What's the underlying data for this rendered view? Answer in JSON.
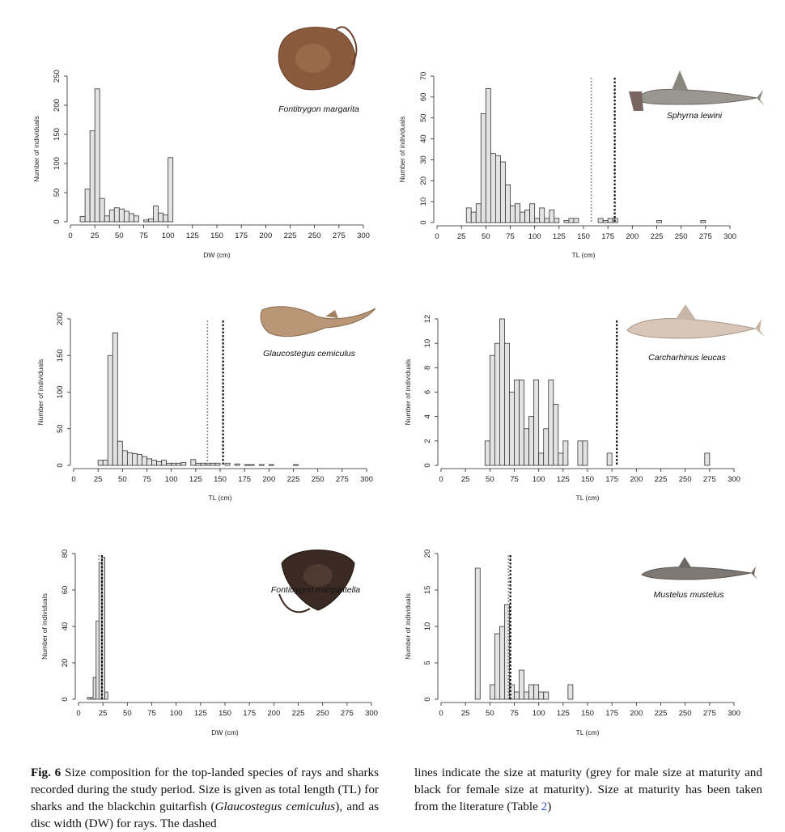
{
  "chart_data": [
    {
      "type": "bar",
      "species": "Fontitrygon margarita",
      "xlabel": "DW (cm)",
      "ylabel": "Number of individuals",
      "xlim": [
        0,
        300
      ],
      "ylim": [
        0,
        250
      ],
      "xticks": [
        0,
        25,
        50,
        75,
        100,
        125,
        150,
        175,
        200,
        225,
        250,
        275,
        300
      ],
      "yticks": [
        0,
        50,
        100,
        150,
        200,
        250
      ],
      "bin_width": 5,
      "bins": [
        [
          10,
          9
        ],
        [
          15,
          56
        ],
        [
          20,
          156
        ],
        [
          25,
          228
        ],
        [
          30,
          40
        ],
        [
          35,
          10
        ],
        [
          40,
          20
        ],
        [
          45,
          24
        ],
        [
          50,
          22
        ],
        [
          55,
          18
        ],
        [
          60,
          14
        ],
        [
          65,
          10
        ],
        [
          75,
          3
        ],
        [
          80,
          5
        ],
        [
          85,
          27
        ],
        [
          90,
          15
        ],
        [
          95,
          12
        ],
        [
          100,
          110
        ]
      ],
      "maturity_male": null,
      "maturity_female": null,
      "silhouette": "stingray-brown"
    },
    {
      "type": "bar",
      "species": "Sphyrna lewini",
      "xlabel": "TL (cm)",
      "ylabel": "Number of individuals",
      "xlim": [
        0,
        300
      ],
      "ylim": [
        0,
        70
      ],
      "xticks": [
        0,
        25,
        50,
        75,
        100,
        125,
        150,
        175,
        200,
        225,
        250,
        275,
        300
      ],
      "yticks": [
        0,
        10,
        20,
        30,
        40,
        50,
        60,
        70
      ],
      "bin_width": 5,
      "bins": [
        [
          30,
          7
        ],
        [
          35,
          5
        ],
        [
          40,
          9
        ],
        [
          45,
          52
        ],
        [
          50,
          64
        ],
        [
          55,
          33
        ],
        [
          60,
          32
        ],
        [
          65,
          29
        ],
        [
          70,
          18
        ],
        [
          75,
          8
        ],
        [
          80,
          9
        ],
        [
          85,
          5
        ],
        [
          90,
          6
        ],
        [
          95,
          9
        ],
        [
          100,
          2
        ],
        [
          105,
          7
        ],
        [
          110,
          2
        ],
        [
          115,
          6
        ],
        [
          120,
          2
        ],
        [
          130,
          1
        ],
        [
          135,
          2
        ],
        [
          140,
          2
        ],
        [
          145,
          0
        ],
        [
          165,
          2
        ],
        [
          170,
          1
        ],
        [
          175,
          2
        ],
        [
          180,
          2
        ],
        [
          225,
          1
        ],
        [
          270,
          1
        ]
      ],
      "maturity_male": 158,
      "maturity_female": 182,
      "silhouette": "hammerhead"
    },
    {
      "type": "bar",
      "species": "Glaucostegus cemiculus",
      "xlabel": "TL (cm)",
      "ylabel": "Number of individuals",
      "xlim": [
        0,
        300
      ],
      "ylim": [
        0,
        200
      ],
      "xticks": [
        0,
        25,
        50,
        75,
        100,
        125,
        150,
        175,
        200,
        225,
        250,
        275,
        300
      ],
      "yticks": [
        0,
        50,
        100,
        150,
        200
      ],
      "bin_width": 5,
      "bins": [
        [
          25,
          7
        ],
        [
          30,
          7
        ],
        [
          35,
          150
        ],
        [
          40,
          181
        ],
        [
          45,
          33
        ],
        [
          50,
          20
        ],
        [
          55,
          17
        ],
        [
          60,
          16
        ],
        [
          65,
          15
        ],
        [
          70,
          12
        ],
        [
          75,
          9
        ],
        [
          80,
          7
        ],
        [
          85,
          5
        ],
        [
          90,
          7
        ],
        [
          95,
          3
        ],
        [
          100,
          3
        ],
        [
          105,
          3
        ],
        [
          110,
          4
        ],
        [
          120,
          8
        ],
        [
          125,
          3
        ],
        [
          130,
          3
        ],
        [
          135,
          3
        ],
        [
          140,
          3
        ],
        [
          145,
          3
        ],
        [
          155,
          3
        ],
        [
          165,
          2
        ],
        [
          175,
          1
        ],
        [
          180,
          1
        ],
        [
          190,
          1
        ],
        [
          200,
          1
        ],
        [
          225,
          1
        ]
      ],
      "maturity_male": 137,
      "maturity_female": 153,
      "silhouette": "guitarfish"
    },
    {
      "type": "bar",
      "species": "Carcharhinus leucas",
      "xlabel": "TL (cm)",
      "ylabel": "Number of individuals",
      "xlim": [
        0,
        300
      ],
      "ylim": [
        0,
        12
      ],
      "xticks": [
        0,
        25,
        50,
        75,
        100,
        125,
        150,
        175,
        200,
        225,
        250,
        275,
        300
      ],
      "yticks": [
        0,
        2,
        4,
        6,
        8,
        10,
        12
      ],
      "bin_width": 5,
      "bins": [
        [
          45,
          2
        ],
        [
          50,
          9
        ],
        [
          55,
          10
        ],
        [
          60,
          12
        ],
        [
          65,
          10
        ],
        [
          70,
          6
        ],
        [
          75,
          7
        ],
        [
          80,
          7
        ],
        [
          85,
          3
        ],
        [
          90,
          4
        ],
        [
          95,
          7
        ],
        [
          100,
          1
        ],
        [
          105,
          3
        ],
        [
          110,
          7
        ],
        [
          115,
          5
        ],
        [
          120,
          1
        ],
        [
          125,
          2
        ],
        [
          130,
          0
        ],
        [
          135,
          0
        ],
        [
          140,
          2
        ],
        [
          145,
          2
        ],
        [
          170,
          1
        ],
        [
          270,
          1
        ]
      ],
      "maturity_male": null,
      "maturity_female": 180,
      "silhouette": "bull-shark"
    },
    {
      "type": "bar",
      "species": "Fontitrygon margaritella",
      "xlabel": "DW (cm)",
      "ylabel": "Number of individuals",
      "xlim": [
        0,
        300
      ],
      "ylim": [
        0,
        80
      ],
      "xticks": [
        0,
        25,
        50,
        75,
        100,
        125,
        150,
        175,
        200,
        225,
        250,
        275,
        300
      ],
      "yticks": [
        0,
        20,
        40,
        60,
        80
      ],
      "bin_width": 3,
      "bins": [
        [
          9,
          1
        ],
        [
          13,
          1
        ],
        [
          15,
          12
        ],
        [
          18,
          43
        ],
        [
          21,
          75
        ],
        [
          24,
          78
        ],
        [
          27,
          4
        ]
      ],
      "maturity_male": 21,
      "maturity_female": 24,
      "silhouette": "stingray-dark"
    },
    {
      "type": "bar",
      "species": "Mustelus mustelus",
      "xlabel": "TL (cm)",
      "ylabel": "Number of individuals",
      "xlim": [
        0,
        300
      ],
      "ylim": [
        0,
        20
      ],
      "xticks": [
        0,
        25,
        50,
        75,
        100,
        125,
        150,
        175,
        200,
        225,
        250,
        275,
        300
      ],
      "yticks": [
        0,
        5,
        10,
        15,
        20
      ],
      "bin_width": 5,
      "bins": [
        [
          35,
          18
        ],
        [
          50,
          2
        ],
        [
          55,
          9
        ],
        [
          60,
          10
        ],
        [
          65,
          13
        ],
        [
          70,
          2
        ],
        [
          75,
          1
        ],
        [
          80,
          4
        ],
        [
          85,
          1
        ],
        [
          90,
          2
        ],
        [
          95,
          2
        ],
        [
          100,
          1
        ],
        [
          105,
          1
        ],
        [
          130,
          2
        ]
      ],
      "maturity_male": 69,
      "maturity_female": 71,
      "silhouette": "smooth-hound"
    }
  ],
  "caption": {
    "fig_label": "Fig. 6",
    "text_a": " Size composition for the top-landed species of rays and sharks recorded during the study period. Size is given as total length (TL) for sharks and the blackchin guitarfish (",
    "italic_species": "Glaucostegus cemiculus",
    "text_b": "), and as disc width (DW) for rays. The dashed",
    "text_right_a": "lines indicate the size at maturity (grey for male size at maturity and black for female size at maturity). Size at maturity has been taken from the literature (Table ",
    "table_ref": "2",
    "text_right_b": ")"
  },
  "colors": {
    "bar_fill": "#e3e3e3",
    "bar_stroke": "#333333",
    "male_line": "#8c8c8c",
    "female_line": "#111111"
  }
}
